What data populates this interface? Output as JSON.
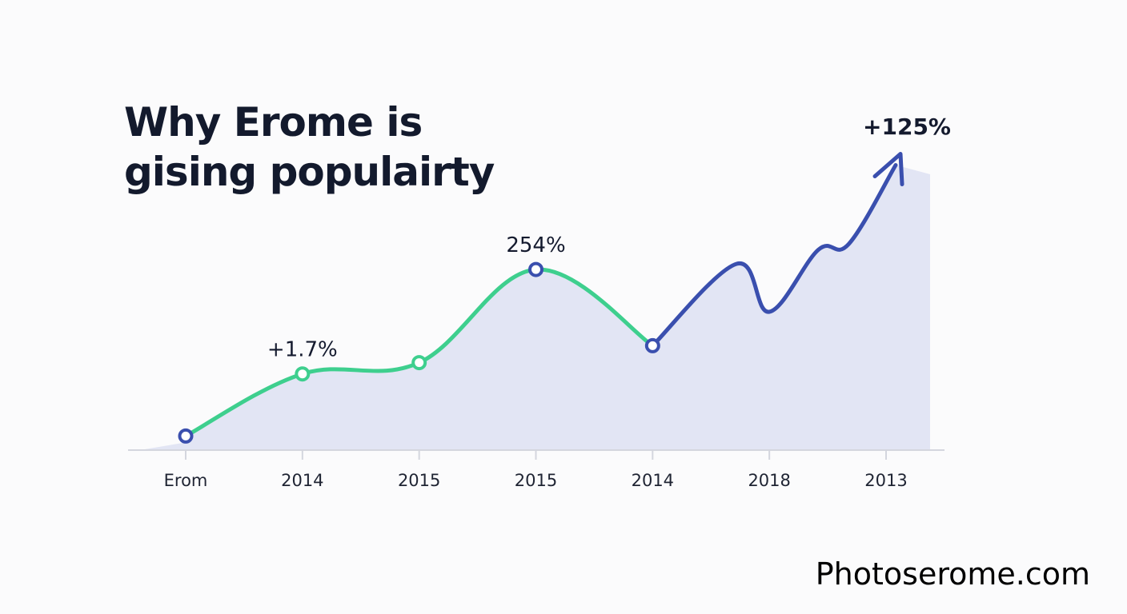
{
  "chart_data": {
    "type": "line",
    "title_lines": [
      "Why Erome is",
      "gising populairty"
    ],
    "xlabel": "",
    "ylabel": "",
    "categories": [
      "Erom",
      "2014",
      "2015",
      "2015",
      "2014",
      "2018",
      "2013"
    ],
    "values": [
      5,
      27,
      31,
      64,
      37,
      51,
      100
    ],
    "ylim": [
      0,
      100
    ],
    "grid": false,
    "legend": "none",
    "data_labels": [
      {
        "index": 1,
        "text": "+1.7%"
      },
      {
        "index": 3,
        "text": "254%"
      },
      {
        "index": 6,
        "text": "+125%"
      }
    ],
    "colors": {
      "rising_line": "#3ecf8e",
      "late_line": "#3a4fae",
      "area_fill": "#dfe2f3",
      "axis": "#d4d6de"
    }
  },
  "watermark": "Photoserome.com"
}
